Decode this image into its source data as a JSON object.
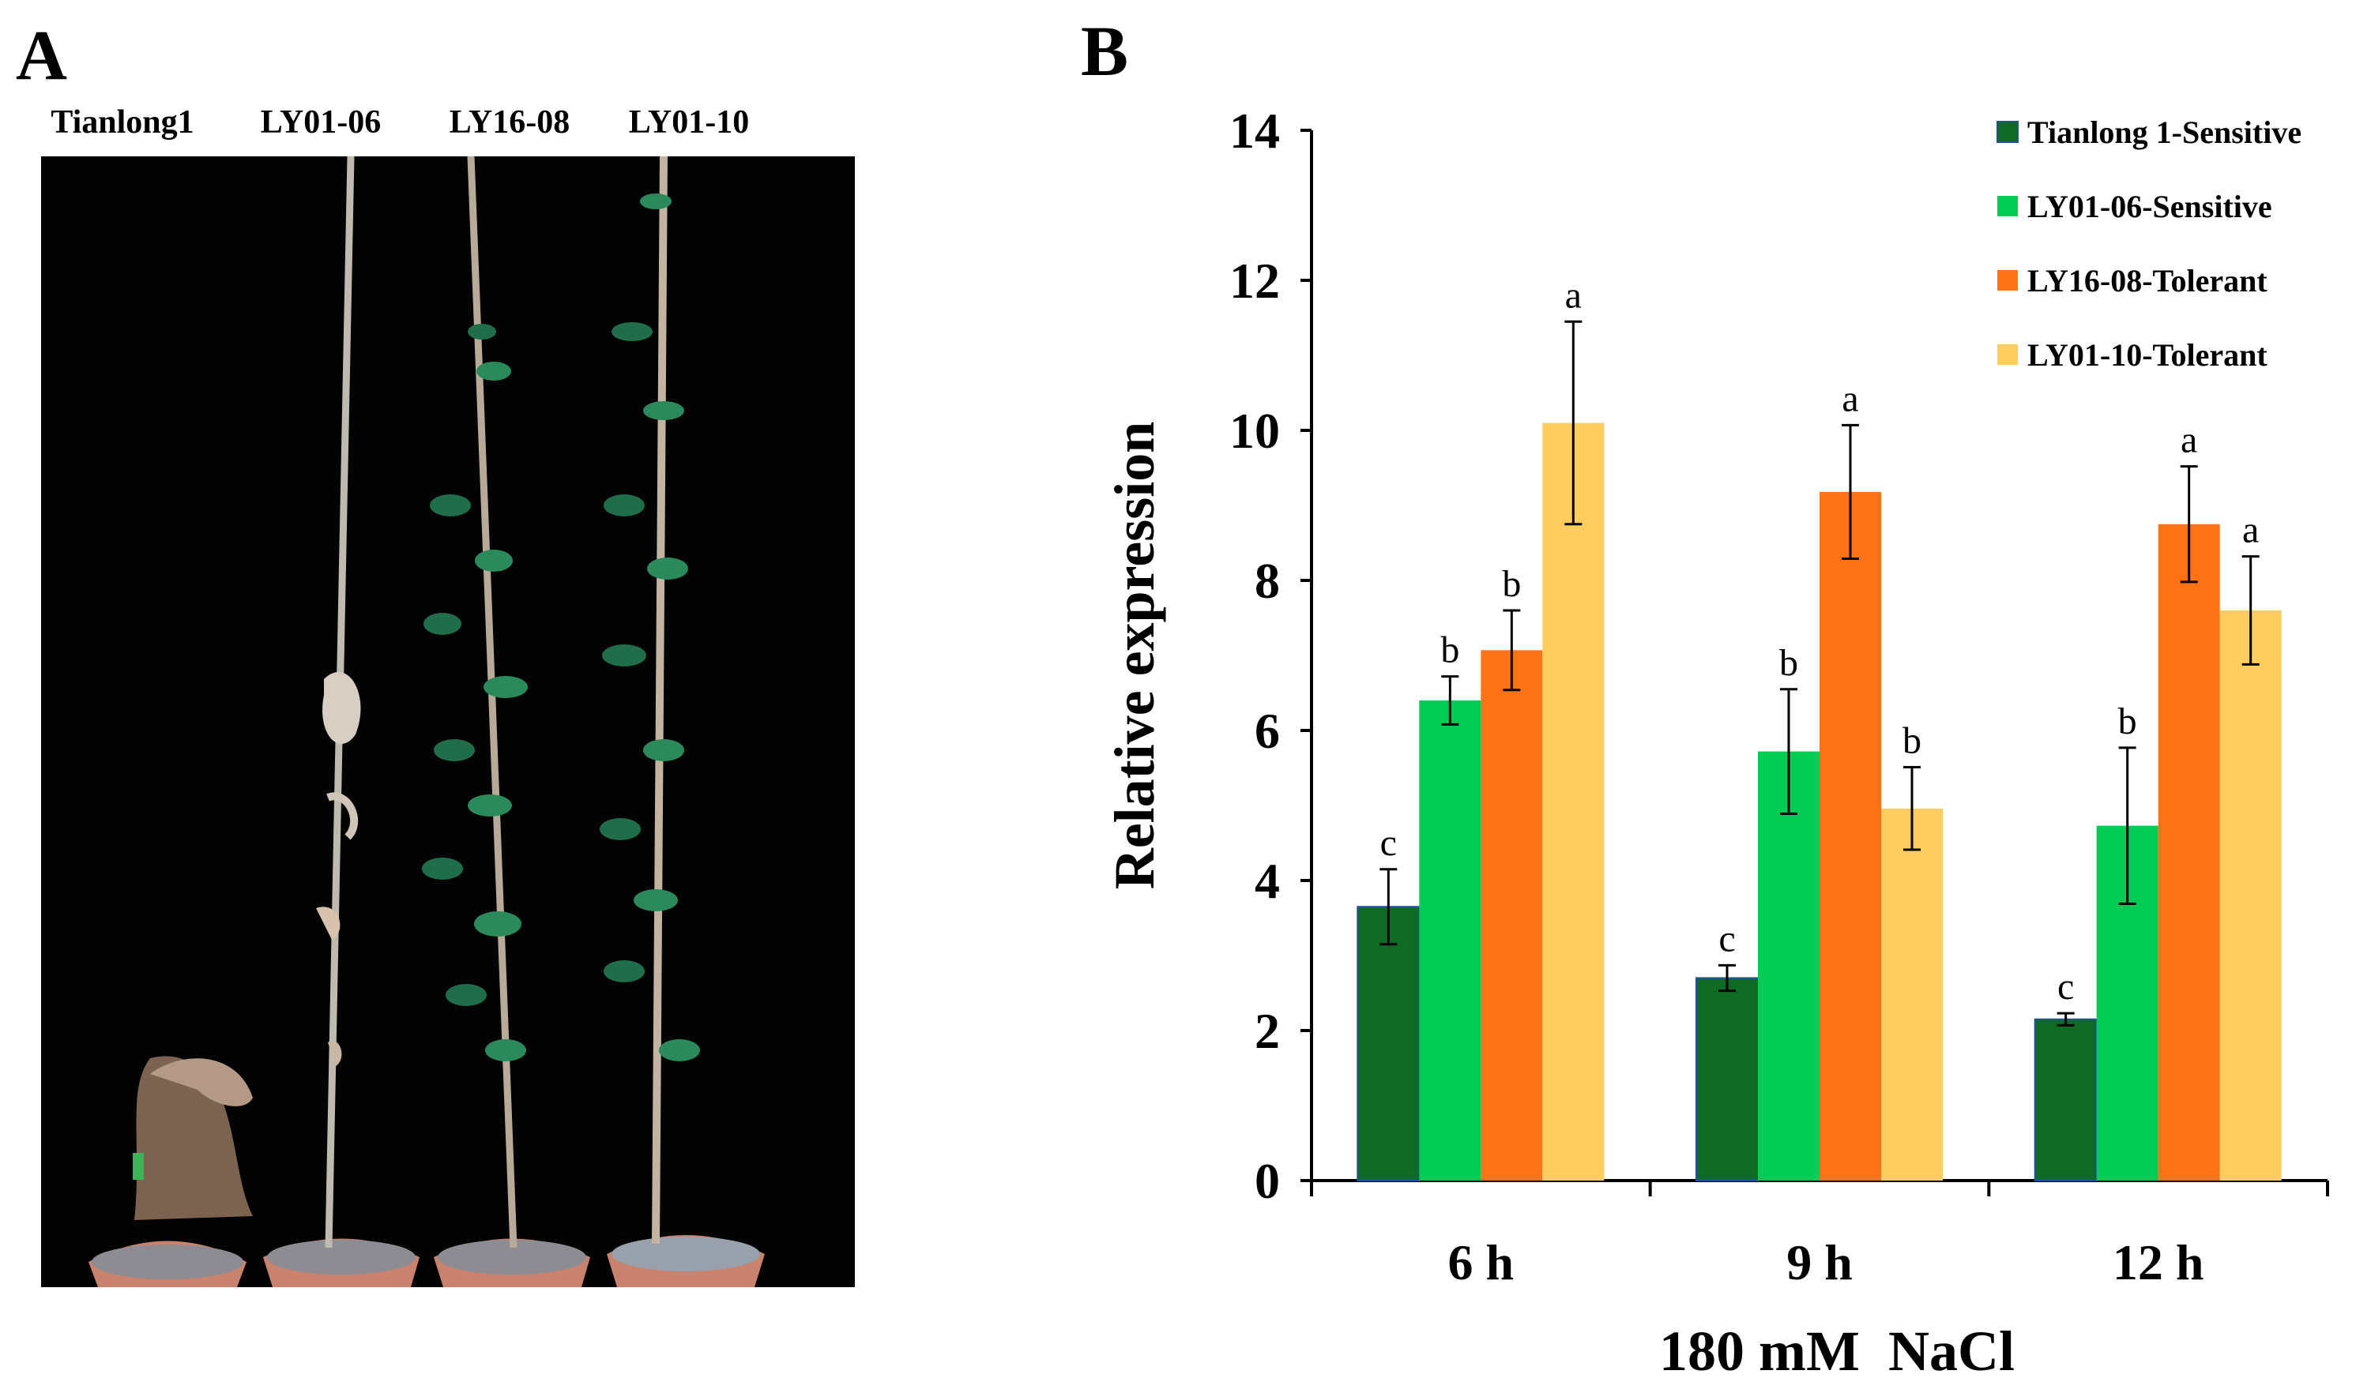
{
  "panels": {
    "a": {
      "letter": "A",
      "plant_labels": [
        "Tianlong1",
        "LY01-06",
        "LY16-08",
        "LY01-10"
      ]
    },
    "b": {
      "letter": "B"
    }
  },
  "chart_data": {
    "type": "bar",
    "title": "",
    "xlabel": "180 mM  NaCl",
    "ylabel": "Relative expression",
    "categories": [
      "6 h",
      "9 h",
      "12 h"
    ],
    "ylim": [
      0,
      14
    ],
    "yticks": [
      0,
      2,
      4,
      6,
      8,
      10,
      12,
      14
    ],
    "grid": false,
    "legend_position": "top-right",
    "series": [
      {
        "name": "Tianlong 1-Sensitive",
        "color": "#0f6b24",
        "values": [
          3.65,
          2.7,
          2.15
        ],
        "errors": [
          0.5,
          0.17,
          0.08
        ],
        "letters": [
          "c",
          "c",
          "c"
        ]
      },
      {
        "name": "LY01-06-Sensitive",
        "color": "#00cc55",
        "values": [
          6.4,
          5.72,
          4.73
        ],
        "errors": [
          0.32,
          0.83,
          1.04
        ],
        "letters": [
          "b",
          "b",
          "b"
        ]
      },
      {
        "name": "LY16-08-Tolerant",
        "color": "#ff7215",
        "values": [
          7.07,
          9.18,
          8.75
        ],
        "errors": [
          0.53,
          0.89,
          0.77
        ],
        "letters": [
          "b",
          "a",
          "a"
        ]
      },
      {
        "name": "LY01-10-Tolerant",
        "color": "#ffcc5e",
        "values": [
          10.1,
          4.96,
          7.6
        ],
        "errors": [
          1.35,
          0.55,
          0.72
        ],
        "letters": [
          "a",
          "b",
          "a"
        ]
      }
    ]
  }
}
